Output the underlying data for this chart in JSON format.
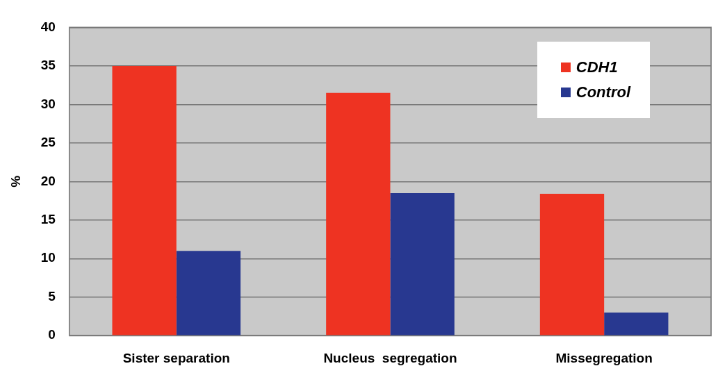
{
  "chart_data": {
    "type": "bar",
    "ylabel": "%",
    "categories": [
      "Sister separation",
      "Nucleus  segregation",
      "Missegregation"
    ],
    "series": [
      {
        "name": "CDH1",
        "color": "#ee3322",
        "values": [
          35,
          31.5,
          18.4
        ]
      },
      {
        "name": "Control",
        "color": "#283890",
        "values": [
          11,
          18.5,
          3
        ]
      }
    ],
    "ylim": [
      0,
      40
    ],
    "yticks": [
      0,
      5,
      10,
      15,
      20,
      25,
      30,
      35,
      40
    ],
    "grid": "y",
    "legend": "top right"
  }
}
